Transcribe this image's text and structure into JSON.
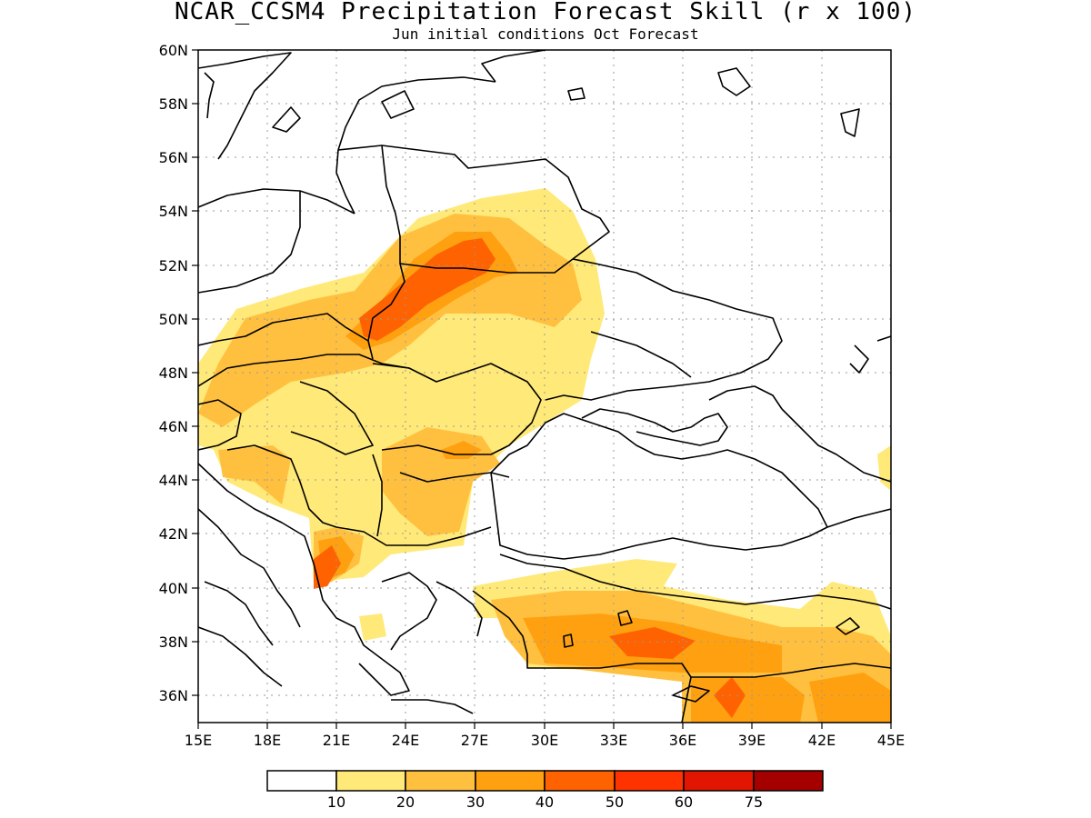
{
  "title": "NCAR_CCSM4 Precipitation Forecast Skill (r x 100)",
  "subtitle": "Jun initial conditions  Oct Forecast",
  "map": {
    "lon_range": [
      15,
      45
    ],
    "lat_range": [
      35,
      60
    ],
    "lon_ticks": [
      "15E",
      "18E",
      "21E",
      "24E",
      "27E",
      "30E",
      "33E",
      "36E",
      "39E",
      "42E",
      "45E"
    ],
    "lat_ticks": [
      "60N",
      "58N",
      "56N",
      "54N",
      "52N",
      "50N",
      "48N",
      "46N",
      "44N",
      "42N",
      "40N",
      "38N",
      "36N"
    ],
    "grid": true
  },
  "colorbar": {
    "labels": [
      "10",
      "20",
      "30",
      "40",
      "50",
      "60",
      "75"
    ],
    "colors": [
      "#ffffff",
      "#ffe978",
      "#ffc040",
      "#ffa010",
      "#ff6200",
      "#ff3300",
      "#e11500",
      "#a50000"
    ]
  },
  "shading": {
    "c10": "#ffe978",
    "c20": "#ffc040",
    "c30": "#ffa010",
    "c40": "#ff6200"
  }
}
